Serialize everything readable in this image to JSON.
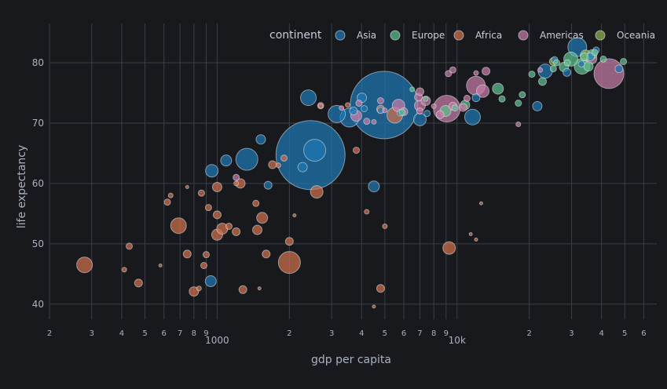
{
  "chart_data": {
    "type": "scatter",
    "subtype": "bubble",
    "xlabel": "gdp per capita",
    "ylabel": "life expectancy",
    "x_scale": "log",
    "xlim": [
      200,
      68000
    ],
    "ylim": [
      37.5,
      86.5
    ],
    "x_ticks": [
      {
        "value": 200,
        "label": "2"
      },
      {
        "value": 300,
        "label": "3"
      },
      {
        "value": 400,
        "label": "4"
      },
      {
        "value": 500,
        "label": "5"
      },
      {
        "value": 600,
        "label": "6"
      },
      {
        "value": 700,
        "label": "7"
      },
      {
        "value": 800,
        "label": "8"
      },
      {
        "value": 900,
        "label": "9"
      },
      {
        "value": 1000,
        "label": "1000"
      },
      {
        "value": 2000,
        "label": "2"
      },
      {
        "value": 3000,
        "label": "3"
      },
      {
        "value": 4000,
        "label": "4"
      },
      {
        "value": 5000,
        "label": "5"
      },
      {
        "value": 6000,
        "label": "6"
      },
      {
        "value": 7000,
        "label": "7"
      },
      {
        "value": 8000,
        "label": "8"
      },
      {
        "value": 9000,
        "label": "9"
      },
      {
        "value": 10000,
        "label": "10k"
      },
      {
        "value": 20000,
        "label": "2"
      },
      {
        "value": 30000,
        "label": "3"
      },
      {
        "value": 40000,
        "label": "4"
      },
      {
        "value": 50000,
        "label": "5"
      },
      {
        "value": 60000,
        "label": "6"
      }
    ],
    "y_ticks": [
      40,
      50,
      60,
      70,
      80
    ],
    "grid": true,
    "legend": {
      "title": "continent",
      "position": "top-right",
      "orientation": "horizontal"
    },
    "colors": {
      "Asia": "#1f77b4",
      "Europe": "#5fbf8f",
      "Africa": "#d0704c",
      "Americas": "#c77ba8",
      "Oceania": "#8fb34b"
    },
    "series": [
      {
        "name": "Asia",
        "points": [
          [
            2450,
            64.7,
            44
          ],
          [
            4960,
            73.0,
            43
          ],
          [
            2550,
            65.5,
            14
          ],
          [
            1330,
            64.0,
            14
          ],
          [
            2400,
            74.2,
            10
          ],
          [
            3560,
            70.9,
            12
          ],
          [
            3150,
            71.5,
            11
          ],
          [
            31700,
            82.6,
            12
          ],
          [
            11600,
            71.0,
            10
          ],
          [
            23300,
            78.6,
            9
          ],
          [
            4500,
            59.5,
            7
          ],
          [
            950,
            62.1,
            8
          ],
          [
            940,
            43.8,
            7
          ],
          [
            1090,
            63.8,
            7
          ],
          [
            1520,
            67.3,
            6
          ],
          [
            1630,
            59.7,
            5
          ],
          [
            2270,
            62.7,
            6
          ],
          [
            4010,
            74.2,
            6
          ],
          [
            7000,
            70.6,
            8
          ],
          [
            21600,
            72.8,
            6
          ],
          [
            3700,
            72.0,
            5
          ],
          [
            4100,
            72.4,
            4
          ],
          [
            7500,
            71.6,
            4
          ],
          [
            12000,
            74.2,
            5
          ],
          [
            47300,
            79.0,
            5
          ],
          [
            28700,
            78.4,
            5
          ],
          [
            38000,
            82.1,
            4
          ],
          [
            36000,
            81.0,
            5
          ],
          [
            25500,
            80.5,
            4
          ],
          [
            33000,
            79.8,
            4
          ],
          [
            4800,
            72.1,
            4
          ],
          [
            5800,
            71.7,
            4
          ]
        ]
      },
      {
        "name": "Europe",
        "points": [
          [
            33200,
            79.4,
            10
          ],
          [
            29800,
            80.6,
            9
          ],
          [
            14800,
            75.7,
            7
          ],
          [
            8950,
            72.0,
            7
          ],
          [
            36600,
            81.4,
            6
          ],
          [
            10800,
            73.0,
            6
          ],
          [
            27900,
            79.3,
            6
          ],
          [
            35300,
            79.4,
            6
          ],
          [
            33900,
            81.0,
            5
          ],
          [
            22700,
            76.9,
            5
          ],
          [
            20500,
            78.1,
            4
          ],
          [
            18000,
            73.3,
            4
          ],
          [
            40700,
            80.6,
            4
          ],
          [
            49400,
            80.2,
            4
          ],
          [
            37500,
            81.7,
            4
          ],
          [
            26000,
            80.0,
            4
          ],
          [
            25200,
            79.0,
            4
          ],
          [
            5900,
            71.8,
            4
          ],
          [
            28800,
            80.0,
            4
          ],
          [
            15400,
            74.0,
            4
          ],
          [
            18700,
            74.7,
            4
          ],
          [
            9800,
            72.5,
            4
          ],
          [
            7400,
            74.0,
            3
          ],
          [
            6500,
            75.6,
            3
          ]
        ]
      },
      {
        "name": "Africa",
        "points": [
          [
            2000,
            46.9,
            14
          ],
          [
            5500,
            71.3,
            10
          ],
          [
            2600,
            58.6,
            8
          ],
          [
            690,
            53.0,
            10
          ],
          [
            280,
            46.5,
            10
          ],
          [
            9270,
            49.3,
            8
          ],
          [
            1540,
            54.3,
            7
          ],
          [
            1000,
            51.5,
            7
          ],
          [
            1050,
            52.5,
            7
          ],
          [
            1250,
            60.0,
            6
          ],
          [
            1000,
            59.4,
            6
          ],
          [
            1470,
            52.3,
            6
          ],
          [
            4800,
            72.3,
            5
          ],
          [
            620,
            56.9,
            4
          ],
          [
            1000,
            54.8,
            5
          ],
          [
            750,
            48.3,
            5
          ],
          [
            470,
            43.5,
            5
          ],
          [
            1700,
            63.1,
            5
          ],
          [
            1200,
            52.0,
            5
          ],
          [
            2000,
            50.4,
            5
          ],
          [
            1600,
            48.3,
            5
          ],
          [
            1900,
            64.2,
            4
          ],
          [
            1280,
            42.4,
            5
          ],
          [
            880,
            46.4,
            4
          ],
          [
            800,
            42.1,
            6
          ],
          [
            900,
            48.2,
            4
          ],
          [
            860,
            58.4,
            4
          ],
          [
            920,
            56.0,
            4
          ],
          [
            4800,
            42.6,
            5
          ],
          [
            1450,
            56.7,
            4
          ],
          [
            4200,
            55.3,
            3
          ],
          [
            3800,
            65.5,
            4
          ],
          [
            430,
            49.6,
            4
          ],
          [
            410,
            45.7,
            3
          ],
          [
            640,
            58.0,
            3
          ],
          [
            1800,
            63.0,
            3
          ],
          [
            1200,
            60.0,
            3
          ],
          [
            3500,
            73.0,
            3
          ],
          [
            840,
            42.6,
            3
          ],
          [
            1120,
            52.9,
            4
          ],
          [
            2700,
            72.8,
            3
          ],
          [
            4500,
            39.6,
            2
          ],
          [
            580,
            46.4,
            2
          ],
          [
            5000,
            52.9,
            3
          ],
          [
            12600,
            56.7,
            2
          ],
          [
            11400,
            51.6,
            2
          ],
          [
            12000,
            50.7,
            2
          ],
          [
            2100,
            54.7,
            2
          ],
          [
            1500,
            42.6,
            2
          ],
          [
            750,
            59.4,
            2
          ]
        ]
      },
      {
        "name": "Americas",
        "points": [
          [
            42950,
            78.2,
            19
          ],
          [
            9065,
            72.4,
            17
          ],
          [
            11980,
            76.2,
            12
          ],
          [
            5700,
            72.9,
            8
          ],
          [
            3800,
            71.2,
            7
          ],
          [
            12800,
            75.3,
            8
          ],
          [
            7000,
            72.9,
            7
          ],
          [
            7400,
            73.7,
            6
          ],
          [
            6000,
            71.9,
            5
          ],
          [
            9600,
            72.8,
            5
          ],
          [
            36300,
            80.7,
            7
          ],
          [
            8500,
            71.4,
            5
          ],
          [
            6900,
            74.3,
            5
          ],
          [
            7000,
            75.2,
            5
          ],
          [
            10600,
            72.6,
            5
          ],
          [
            13200,
            78.6,
            5
          ],
          [
            4200,
            70.3,
            4
          ],
          [
            2700,
            72.9,
            4
          ],
          [
            4800,
            73.7,
            4
          ],
          [
            3900,
            73.3,
            4
          ],
          [
            9200,
            78.2,
            4
          ],
          [
            9600,
            78.8,
            4
          ],
          [
            12000,
            78.3,
            3
          ],
          [
            22200,
            78.8,
            3
          ],
          [
            11000,
            74.1,
            4
          ],
          [
            7000,
            72.0,
            4
          ],
          [
            4500,
            70.2,
            3
          ],
          [
            1200,
            61.0,
            4
          ],
          [
            5000,
            72.1,
            3
          ],
          [
            3300,
            72.5,
            3
          ],
          [
            8000,
            72.8,
            3
          ],
          [
            18000,
            69.8,
            3
          ]
        ]
      },
      {
        "name": "Oceania",
        "points": [
          [
            34400,
            81.2,
            7
          ],
          [
            25200,
            80.2,
            5
          ]
        ]
      }
    ]
  }
}
